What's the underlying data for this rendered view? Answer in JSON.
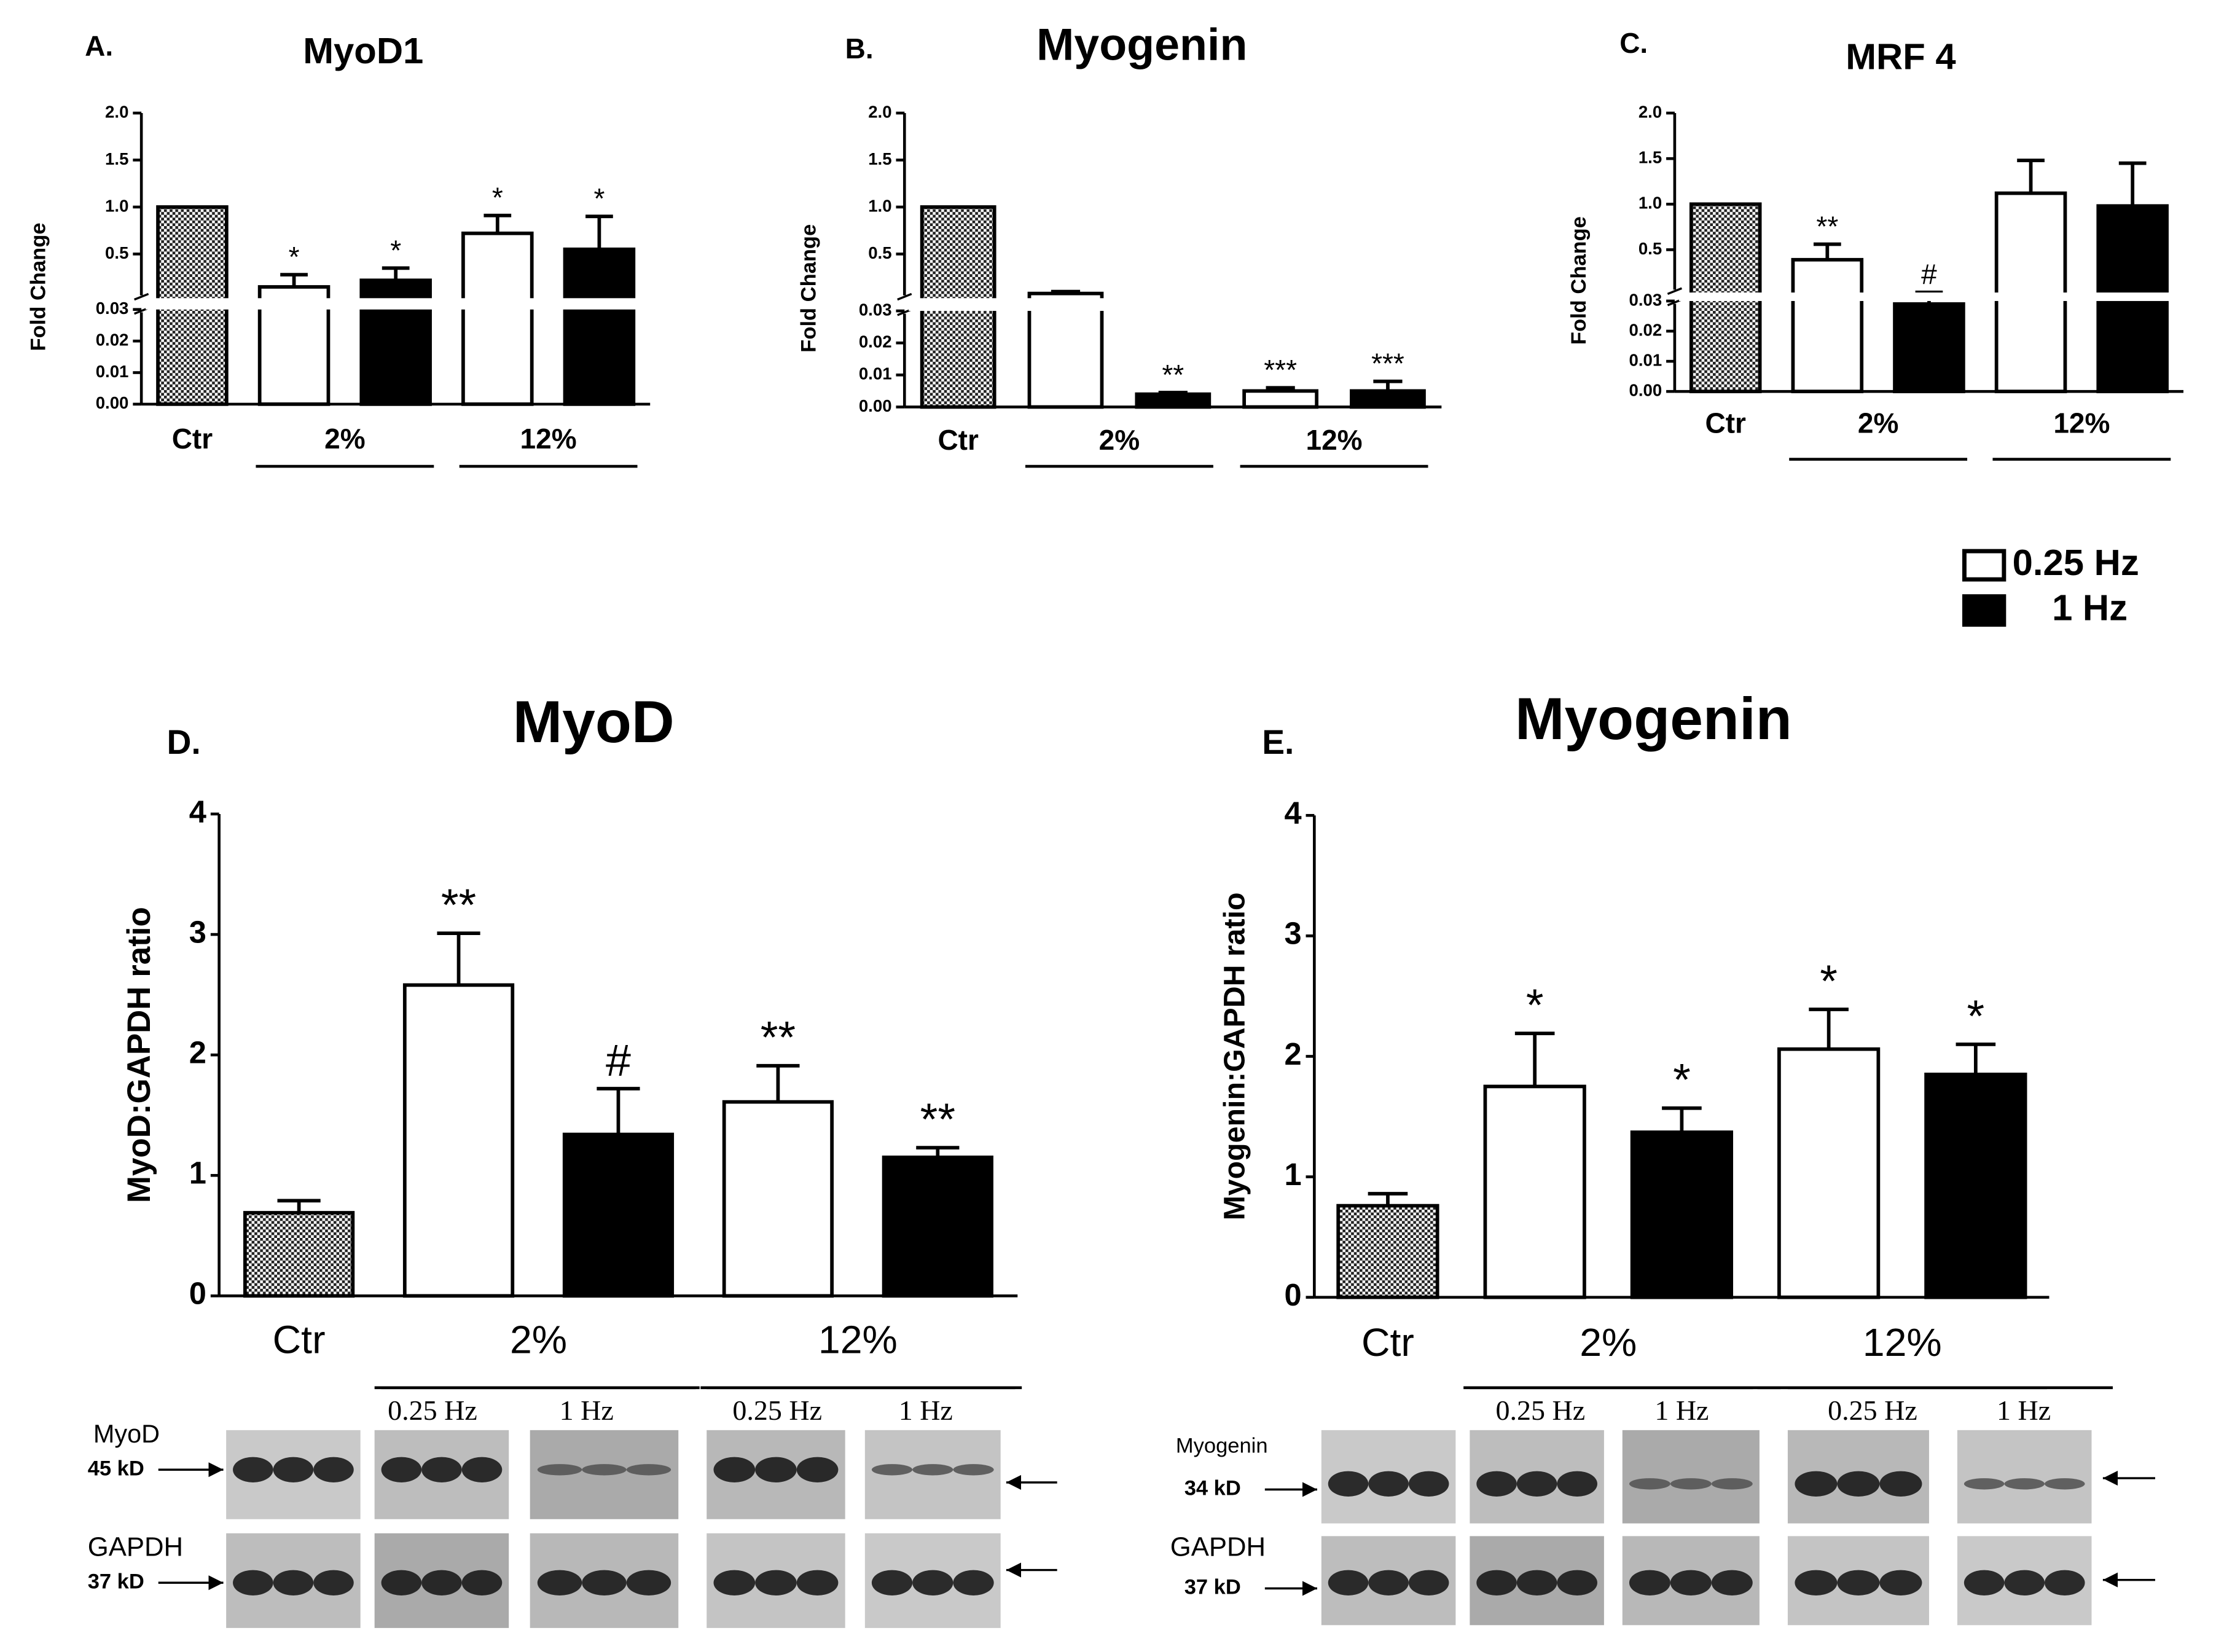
{
  "legend": [
    {
      "name": "0.25 Hz",
      "color": "#ffffff"
    },
    {
      "name": "1 Hz",
      "color": "#000000"
    }
  ],
  "chart_data": [
    {
      "type": "bar",
      "panel_label": "A.",
      "title": "MyoD1",
      "y_label": "Fold Change",
      "categories": [
        "Ctr",
        "2%",
        "12%"
      ],
      "control_value": 1.0,
      "series": [
        {
          "color": "#ffffff",
          "values": [
            null,
            0.15,
            0.72
          ],
          "errors": [
            null,
            0.13,
            0.19
          ],
          "annotations": [
            null,
            "*",
            "*"
          ]
        },
        {
          "color": "#000000",
          "values": [
            null,
            0.22,
            0.55
          ],
          "errors": [
            null,
            0.13,
            0.35
          ],
          "annotations": [
            null,
            "*",
            "*"
          ]
        }
      ],
      "ylim": [
        0,
        2
      ],
      "ybreak": 0.03,
      "yticks": [
        {
          "value": 0,
          "label": "0.00"
        },
        0.01,
        0.02,
        0.03,
        0.5,
        {
          "value": 1,
          "label": "1.0"
        },
        1.5,
        {
          "value": 2,
          "label": "2.0"
        }
      ]
    },
    {
      "type": "bar",
      "panel_label": "B.",
      "title": "Myogenin",
      "y_label": "Fold Change",
      "categories": [
        "Ctr",
        "2%",
        "12%"
      ],
      "control_value": 1.0,
      "series": [
        {
          "color": "#ffffff",
          "values": [
            null,
            0.08,
            0.005
          ],
          "errors": [
            null,
            0.02,
            0.001
          ],
          "annotations": [
            null,
            null,
            "***"
          ]
        },
        {
          "color": "#000000",
          "values": [
            null,
            0.004,
            0.005
          ],
          "errors": [
            null,
            0.0005,
            0.003
          ],
          "annotations": [
            null,
            "**",
            "***"
          ]
        }
      ],
      "ylim": [
        0,
        2
      ],
      "ybreak": 0.03,
      "yticks": [
        {
          "value": 0,
          "label": "0.00"
        },
        0.01,
        0.02,
        0.03,
        0.5,
        {
          "value": 1,
          "label": "1.0"
        },
        1.5,
        {
          "value": 2,
          "label": "2.0"
        }
      ]
    },
    {
      "type": "bar",
      "panel_label": "C.",
      "title": "MRF 4",
      "y_label": "Fold Change",
      "categories": [
        "Ctr",
        "2%",
        "12%"
      ],
      "control_value": 1.0,
      "series": [
        {
          "color": "#ffffff",
          "values": [
            null,
            0.39,
            1.12
          ],
          "errors": [
            null,
            0.17,
            0.36
          ],
          "annotations": [
            null,
            "**",
            null
          ]
        },
        {
          "color": "#000000",
          "values": [
            null,
            0.029,
            0.98
          ],
          "errors": [
            null,
            0.003,
            0.47
          ],
          "annotations": [
            null,
            "#",
            null
          ]
        }
      ],
      "ylim": [
        0,
        2
      ],
      "ybreak": 0.03,
      "yticks": [
        {
          "value": 0,
          "label": "0.00"
        },
        0.01,
        0.02,
        0.03,
        0.5,
        {
          "value": 1,
          "label": "1.0"
        },
        1.5,
        {
          "value": 2,
          "label": "2.0"
        }
      ]
    },
    {
      "type": "bar",
      "panel_label": "D.",
      "title": "MyoD",
      "y_label": "MyoD:GAPDH ratio",
      "categories": [
        "Ctr",
        "2%",
        "12%"
      ],
      "control_value": 0.69,
      "control_error": 0.1,
      "series": [
        {
          "color": "#ffffff",
          "values": [
            null,
            2.58,
            1.61
          ],
          "errors": [
            null,
            0.43,
            0.3
          ],
          "annotations": [
            null,
            "**",
            "**"
          ]
        },
        {
          "color": "#000000",
          "values": [
            null,
            1.34,
            1.15
          ],
          "errors": [
            null,
            0.38,
            0.08
          ],
          "annotations": [
            null,
            "#",
            "**"
          ]
        }
      ],
      "ylim": [
        0,
        4
      ],
      "yticks": [
        0,
        1,
        2,
        3,
        4
      ],
      "blot": {
        "freq_labels": [
          "0.25 Hz",
          "1 Hz",
          "0.25 Hz",
          "1 Hz"
        ],
        "rows": [
          {
            "protein": "MyoD",
            "size": "45 kD"
          },
          {
            "protein": "GAPDH",
            "size": "37 kD"
          }
        ]
      }
    },
    {
      "type": "bar",
      "panel_label": "E.",
      "title": "Myogenin",
      "y_label": "Myogenin:GAPDH ratio",
      "categories": [
        "Ctr",
        "2%",
        "12%"
      ],
      "control_value": 0.76,
      "control_error": 0.1,
      "series": [
        {
          "color": "#ffffff",
          "values": [
            null,
            1.75,
            2.06
          ],
          "errors": [
            null,
            0.44,
            0.33
          ],
          "annotations": [
            null,
            "*",
            "*"
          ]
        },
        {
          "color": "#000000",
          "values": [
            null,
            1.37,
            1.85
          ],
          "errors": [
            null,
            0.2,
            0.25
          ],
          "annotations": [
            null,
            "*",
            "*"
          ]
        }
      ],
      "ylim": [
        0,
        4
      ],
      "yticks": [
        0,
        1,
        2,
        3,
        4
      ],
      "blot": {
        "freq_labels": [
          "0.25 Hz",
          "1 Hz",
          "0.25 Hz",
          "1 Hz"
        ],
        "rows": [
          {
            "protein": "Myogenin",
            "size": "34 kD"
          },
          {
            "protein": "GAPDH",
            "size": "37 kD"
          }
        ]
      }
    }
  ]
}
